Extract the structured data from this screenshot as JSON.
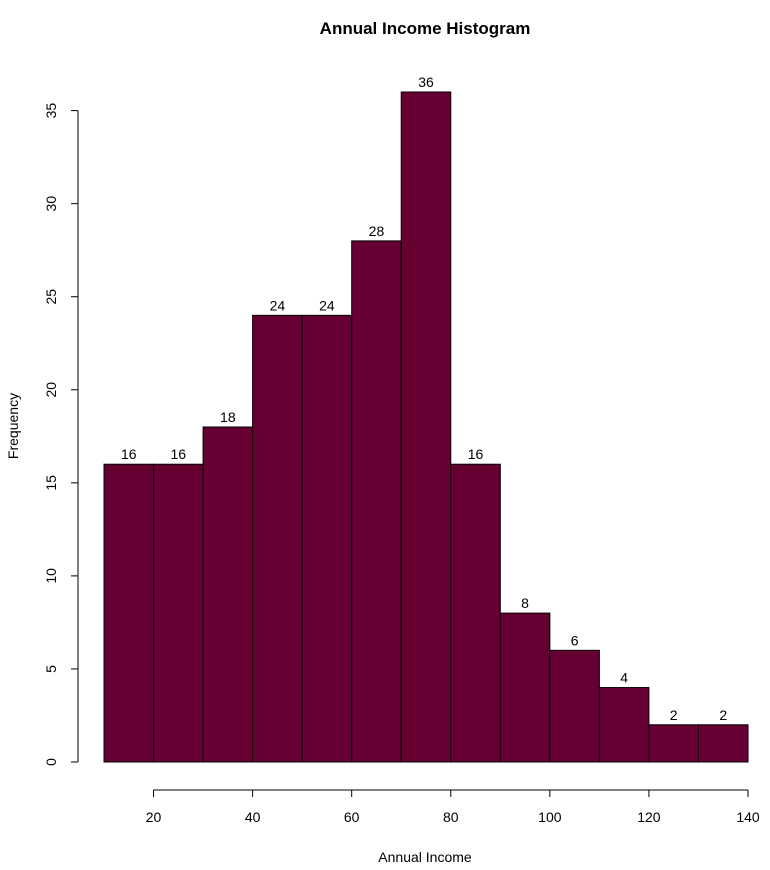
{
  "chart_data": {
    "type": "bar",
    "title": "Annual Income Histogram",
    "xlabel": "Annual Income",
    "ylabel": "Frequency",
    "bins": [
      {
        "start": 10,
        "end": 20,
        "count": 16
      },
      {
        "start": 20,
        "end": 30,
        "count": 16
      },
      {
        "start": 30,
        "end": 40,
        "count": 18
      },
      {
        "start": 40,
        "end": 50,
        "count": 24
      },
      {
        "start": 50,
        "end": 60,
        "count": 24
      },
      {
        "start": 60,
        "end": 70,
        "count": 28
      },
      {
        "start": 70,
        "end": 80,
        "count": 36
      },
      {
        "start": 80,
        "end": 90,
        "count": 16
      },
      {
        "start": 90,
        "end": 100,
        "count": 8
      },
      {
        "start": 100,
        "end": 110,
        "count": 6
      },
      {
        "start": 110,
        "end": 120,
        "count": 4
      },
      {
        "start": 120,
        "end": 130,
        "count": 2
      },
      {
        "start": 130,
        "end": 140,
        "count": 2
      }
    ],
    "x_ticks": [
      20,
      40,
      60,
      80,
      100,
      120,
      140
    ],
    "y_ticks": [
      0,
      5,
      10,
      15,
      20,
      25,
      30,
      35
    ],
    "xlim": [
      10,
      140
    ],
    "ylim": [
      0,
      36
    ],
    "bar_color": "#660033",
    "grid": false,
    "legend": "none"
  }
}
